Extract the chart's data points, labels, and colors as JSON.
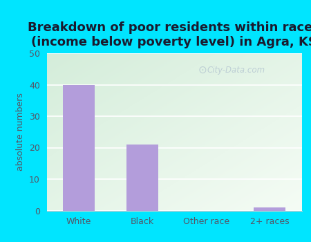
{
  "title": "Breakdown of poor residents within races\n(income below poverty level) in Agra, KS",
  "categories": [
    "White",
    "Black",
    "Other race",
    "2+ races"
  ],
  "values": [
    40,
    21,
    0,
    1
  ],
  "bar_color": "#b39ddb",
  "ylabel": "absolute numbers",
  "ylim": [
    0,
    50
  ],
  "yticks": [
    0,
    10,
    20,
    30,
    40,
    50
  ],
  "background_outer": "#00e5ff",
  "grad_color_topleft": "#d4edda",
  "grad_color_bottomright": "#f0f8f0",
  "title_fontsize": 13,
  "axis_label_fontsize": 9,
  "tick_fontsize": 9,
  "title_color": "#1a1a2e",
  "tick_color": "#555566",
  "watermark_text": "City-Data.com",
  "watermark_color": "#aabbcc",
  "watermark_alpha": 0.65
}
